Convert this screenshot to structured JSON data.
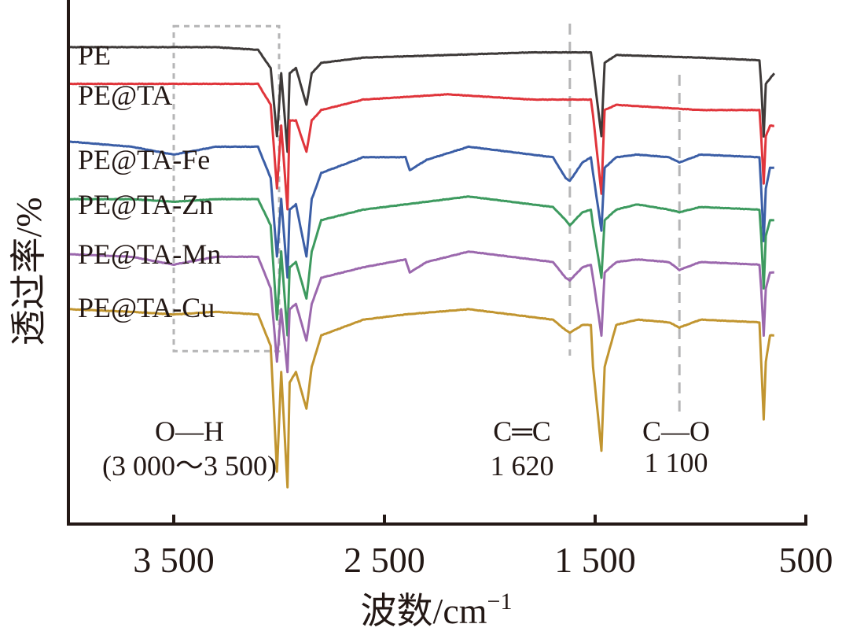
{
  "chart_data": {
    "type": "line",
    "xlabel": "波数/cm",
    "xlabel_sup": "−1",
    "ylabel": "透过率/%",
    "xlim": [
      4000,
      500
    ],
    "x_reversed": true,
    "xticks": [
      {
        "value": 3500,
        "label": "3 500"
      },
      {
        "value": 2500,
        "label": "2 500"
      },
      {
        "value": 1500,
        "label": "1 500"
      },
      {
        "value": 500,
        "label": "500"
      }
    ],
    "ylim": [
      0,
      100
    ],
    "y_ticks_shown": false,
    "grid": false,
    "annotations": [
      {
        "type": "box",
        "name": "oh-region-box",
        "x_range": [
          3500,
          3000
        ],
        "y_range": [
          33,
          95
        ],
        "style": "dashed"
      },
      {
        "type": "vline",
        "name": "cc-vline",
        "x": 1620,
        "style": "dashed"
      },
      {
        "type": "vline",
        "name": "co-vline",
        "x": 1100,
        "style": "dashed"
      },
      {
        "type": "text",
        "name": "oh-label",
        "lines": [
          "O—H",
          "(3 000～3 500)"
        ],
        "x": 3420
      },
      {
        "type": "text",
        "name": "cc-label",
        "lines": [
          "C═C",
          "1 620"
        ],
        "x": 1690
      },
      {
        "type": "text",
        "name": "co-label",
        "lines": [
          "C—O",
          "1 100"
        ],
        "x": 1050
      }
    ],
    "series": [
      {
        "name": "PE",
        "color": "#3e3a39",
        "points": [
          [
            4000,
            91
          ],
          [
            3500,
            91
          ],
          [
            3300,
            91
          ],
          [
            3100,
            90.5
          ],
          [
            3040,
            87
          ],
          [
            3010,
            74
          ],
          [
            2990,
            86
          ],
          [
            2960,
            71
          ],
          [
            2950,
            86
          ],
          [
            2920,
            87
          ],
          [
            2870,
            80
          ],
          [
            2845,
            86
          ],
          [
            2800,
            88
          ],
          [
            2600,
            89
          ],
          [
            2200,
            89.5
          ],
          [
            1800,
            90
          ],
          [
            1520,
            90
          ],
          [
            1510,
            87
          ],
          [
            1470,
            74
          ],
          [
            1455,
            88
          ],
          [
            1400,
            89.5
          ],
          [
            1000,
            89
          ],
          [
            720,
            88.5
          ],
          [
            712,
            84
          ],
          [
            700,
            74
          ],
          [
            690,
            84
          ],
          [
            670,
            85
          ],
          [
            650,
            86
          ]
        ]
      },
      {
        "name": "PE@TA",
        "color": "#e0353b",
        "points": [
          [
            4000,
            84
          ],
          [
            3500,
            84
          ],
          [
            3300,
            84
          ],
          [
            3100,
            84
          ],
          [
            3040,
            80
          ],
          [
            3010,
            64
          ],
          [
            2990,
            76
          ],
          [
            2960,
            60
          ],
          [
            2950,
            77
          ],
          [
            2920,
            77
          ],
          [
            2870,
            71
          ],
          [
            2845,
            77
          ],
          [
            2800,
            79
          ],
          [
            2600,
            81
          ],
          [
            2200,
            82
          ],
          [
            1800,
            81
          ],
          [
            1520,
            81
          ],
          [
            1510,
            78
          ],
          [
            1470,
            63
          ],
          [
            1455,
            79
          ],
          [
            1400,
            80
          ],
          [
            1000,
            79
          ],
          [
            720,
            79
          ],
          [
            712,
            74
          ],
          [
            700,
            65
          ],
          [
            690,
            74
          ],
          [
            670,
            76
          ],
          [
            650,
            76
          ]
        ]
      },
      {
        "name": "PE@TA-Fe",
        "color": "#3b5ea6",
        "points": [
          [
            4000,
            73
          ],
          [
            3700,
            72
          ],
          [
            3500,
            70.5
          ],
          [
            3300,
            72
          ],
          [
            3100,
            72
          ],
          [
            3040,
            66
          ],
          [
            3010,
            51
          ],
          [
            2990,
            62
          ],
          [
            2960,
            47
          ],
          [
            2950,
            60
          ],
          [
            2920,
            61
          ],
          [
            2870,
            51
          ],
          [
            2845,
            62
          ],
          [
            2800,
            67
          ],
          [
            2600,
            70
          ],
          [
            2400,
            70
          ],
          [
            2380,
            67.5
          ],
          [
            2300,
            69.5
          ],
          [
            2100,
            72
          ],
          [
            1900,
            71
          ],
          [
            1700,
            70
          ],
          [
            1640,
            66
          ],
          [
            1620,
            65.5
          ],
          [
            1560,
            69
          ],
          [
            1520,
            70
          ],
          [
            1510,
            67
          ],
          [
            1470,
            56
          ],
          [
            1455,
            68
          ],
          [
            1400,
            70
          ],
          [
            1300,
            70.5
          ],
          [
            1150,
            70
          ],
          [
            1100,
            69
          ],
          [
            1000,
            70.5
          ],
          [
            720,
            70
          ],
          [
            712,
            64
          ],
          [
            700,
            54
          ],
          [
            690,
            64
          ],
          [
            670,
            68
          ],
          [
            650,
            68
          ]
        ]
      },
      {
        "name": "PE@TA-Zn",
        "color": "#3d9a5f",
        "points": [
          [
            4000,
            62
          ],
          [
            3700,
            62
          ],
          [
            3500,
            61.5
          ],
          [
            3300,
            62
          ],
          [
            3100,
            62
          ],
          [
            3040,
            57
          ],
          [
            3010,
            39
          ],
          [
            2990,
            52
          ],
          [
            2960,
            36
          ],
          [
            2950,
            49
          ],
          [
            2920,
            50
          ],
          [
            2870,
            43
          ],
          [
            2845,
            52
          ],
          [
            2800,
            58
          ],
          [
            2600,
            60
          ],
          [
            2400,
            61
          ],
          [
            2100,
            62.5
          ],
          [
            1900,
            61.5
          ],
          [
            1700,
            60.5
          ],
          [
            1640,
            58
          ],
          [
            1620,
            57
          ],
          [
            1560,
            59.5
          ],
          [
            1520,
            60
          ],
          [
            1510,
            57
          ],
          [
            1470,
            47
          ],
          [
            1455,
            58
          ],
          [
            1400,
            60
          ],
          [
            1300,
            61
          ],
          [
            1150,
            60
          ],
          [
            1100,
            59.5
          ],
          [
            1000,
            60.5
          ],
          [
            720,
            60
          ],
          [
            712,
            55
          ],
          [
            700,
            45
          ],
          [
            690,
            55
          ],
          [
            670,
            58
          ],
          [
            650,
            58
          ]
        ]
      },
      {
        "name": "PE@TA-Mn",
        "color": "#9b68ad",
        "points": [
          [
            4000,
            51.5
          ],
          [
            3700,
            51
          ],
          [
            3500,
            49.5
          ],
          [
            3300,
            51
          ],
          [
            3100,
            51
          ],
          [
            3040,
            45
          ],
          [
            3010,
            31
          ],
          [
            2990,
            41
          ],
          [
            2960,
            29
          ],
          [
            2950,
            41
          ],
          [
            2920,
            42
          ],
          [
            2870,
            35
          ],
          [
            2845,
            42
          ],
          [
            2800,
            47
          ],
          [
            2600,
            49
          ],
          [
            2400,
            50.5
          ],
          [
            2380,
            48
          ],
          [
            2300,
            50
          ],
          [
            2100,
            52
          ],
          [
            1900,
            51
          ],
          [
            1700,
            50
          ],
          [
            1640,
            47
          ],
          [
            1620,
            46.5
          ],
          [
            1560,
            49
          ],
          [
            1520,
            49.5
          ],
          [
            1510,
            47
          ],
          [
            1470,
            36
          ],
          [
            1455,
            48
          ],
          [
            1400,
            50
          ],
          [
            1300,
            50.5
          ],
          [
            1150,
            50
          ],
          [
            1100,
            48.5
          ],
          [
            1000,
            50
          ],
          [
            720,
            49.5
          ],
          [
            712,
            45
          ],
          [
            700,
            36
          ],
          [
            690,
            45
          ],
          [
            670,
            48
          ],
          [
            650,
            48
          ]
        ]
      },
      {
        "name": "PE@TA-Cu",
        "color": "#c19530",
        "points": [
          [
            4000,
            41
          ],
          [
            3700,
            40.5
          ],
          [
            3500,
            40
          ],
          [
            3300,
            40.5
          ],
          [
            3100,
            40
          ],
          [
            3040,
            34
          ],
          [
            3010,
            10
          ],
          [
            2990,
            29
          ],
          [
            2960,
            7
          ],
          [
            2950,
            27
          ],
          [
            2920,
            29
          ],
          [
            2870,
            22
          ],
          [
            2845,
            30
          ],
          [
            2800,
            36
          ],
          [
            2600,
            39
          ],
          [
            2400,
            40
          ],
          [
            2100,
            41
          ],
          [
            1900,
            40
          ],
          [
            1700,
            39
          ],
          [
            1640,
            37
          ],
          [
            1620,
            36.5
          ],
          [
            1560,
            38
          ],
          [
            1520,
            38
          ],
          [
            1510,
            30
          ],
          [
            1470,
            14
          ],
          [
            1455,
            30
          ],
          [
            1400,
            38
          ],
          [
            1300,
            39
          ],
          [
            1150,
            38.5
          ],
          [
            1100,
            37.5
          ],
          [
            1000,
            39
          ],
          [
            720,
            38.5
          ],
          [
            712,
            31
          ],
          [
            700,
            20
          ],
          [
            690,
            31
          ],
          [
            670,
            36
          ],
          [
            650,
            36
          ]
        ]
      }
    ]
  }
}
